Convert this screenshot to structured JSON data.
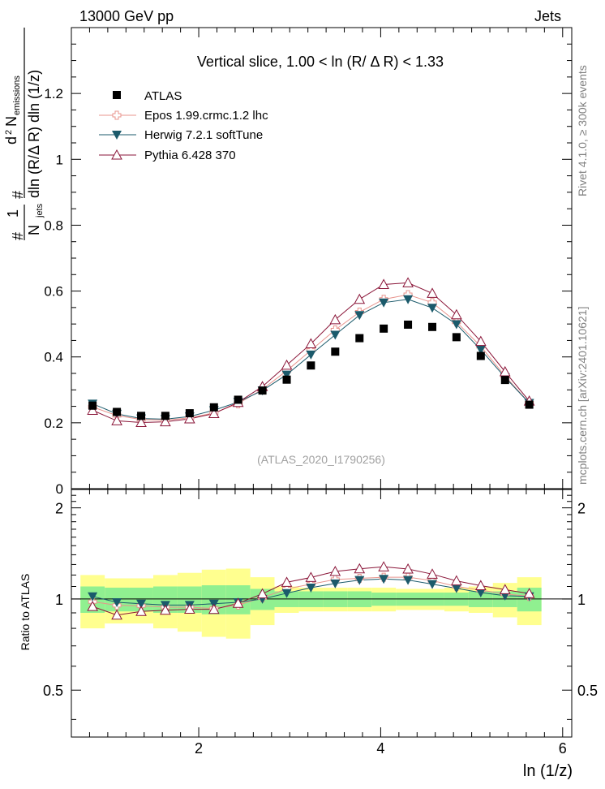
{
  "header": {
    "left_label": "13000 GeV pp",
    "right_label": "Jets"
  },
  "side_labels": {
    "rivet": "Rivet 4.1.0, ≥ 300k events",
    "mcplots": "mcplots.cern.ch [arXiv:2401.10621]"
  },
  "chart_data": [
    {
      "type": "line",
      "title": "Vertical slice, 1.00 < ln (R/  Δ R) < 1.33",
      "watermark": "(ATLAS_2020_I1790256)",
      "xlabel": "ln (1/z)",
      "ylabel_parts": {
        "hash1": "#",
        "one": "1",
        "n": "N",
        "jets": "jets",
        "hash2": "#",
        "d2": "d",
        "d2_sup": "2",
        "n_em": "N",
        "emissions": "emissions",
        "denominator": "dln (R/Δ R) dln (1/z)"
      },
      "xlim": [
        0.6,
        6.1
      ],
      "ylim": [
        0,
        1.4
      ],
      "y_ticks": [
        "0",
        "0.2",
        "0.4",
        "0.6",
        "0.8",
        "1",
        "1.2"
      ],
      "x": [
        0.833,
        1.1,
        1.367,
        1.633,
        1.9,
        2.167,
        2.433,
        2.7,
        2.967,
        3.233,
        3.5,
        3.767,
        4.033,
        4.3,
        4.567,
        4.833,
        5.1,
        5.367,
        5.633
      ],
      "series": [
        {
          "name": "ATLAS",
          "values": [
            0.252,
            0.233,
            0.221,
            0.221,
            0.229,
            0.247,
            0.27,
            0.298,
            0.331,
            0.374,
            0.416,
            0.457,
            0.486,
            0.498,
            0.491,
            0.46,
            0.403,
            0.33,
            0.255
          ]
        },
        {
          "name": "Epos 1.99.crmc.1.2 lhc",
          "values": [
            0.248,
            0.222,
            0.21,
            0.208,
            0.215,
            0.23,
            0.258,
            0.302,
            0.358,
            0.42,
            0.482,
            0.536,
            0.575,
            0.589,
            0.565,
            0.506,
            0.432,
            0.342,
            0.26
          ]
        },
        {
          "name": "Herwig 7.2.1 softTune",
          "values": [
            0.258,
            0.227,
            0.213,
            0.211,
            0.219,
            0.238,
            0.263,
            0.298,
            0.346,
            0.407,
            0.467,
            0.527,
            0.565,
            0.575,
            0.549,
            0.499,
            0.422,
            0.338,
            0.26
          ]
        },
        {
          "name": "Pythia 6.428 370",
          "values": [
            0.238,
            0.206,
            0.201,
            0.203,
            0.212,
            0.228,
            0.262,
            0.31,
            0.375,
            0.44,
            0.513,
            0.575,
            0.62,
            0.625,
            0.593,
            0.528,
            0.447,
            0.355,
            0.266
          ]
        }
      ],
      "legend": [
        "ATLAS",
        "Epos 1.99.crmc.1.2 lhc",
        "Herwig 7.2.1 softTune",
        "Pythia 6.428 370"
      ],
      "legend_position": "top-left",
      "colors": {
        "ATLAS": "#000000",
        "Epos 1.99.crmc.1.2 lhc": "#e8948d",
        "Herwig 7.2.1 softTune": "#1b5a6b",
        "Pythia 6.428 370": "#8a1538"
      }
    },
    {
      "type": "line",
      "title": "",
      "xlabel": "ln (1/z)",
      "ylabel": "Ratio to ATLAS",
      "xlim": [
        0.6,
        6.1
      ],
      "ylim": [
        0.35,
        2.3
      ],
      "y_ticks": [
        "0.5",
        "1",
        "2"
      ],
      "x_ticks": [
        "2",
        "4",
        "6"
      ],
      "x_edges": [
        0.7,
        0.967,
        1.233,
        1.5,
        1.767,
        2.033,
        2.3,
        2.567,
        2.833,
        3.1,
        3.367,
        3.633,
        3.9,
        4.167,
        4.433,
        4.7,
        4.967,
        5.233,
        5.5,
        5.767
      ],
      "band_stat": [
        0.1,
        0.09,
        0.09,
        0.1,
        0.1,
        0.11,
        0.11,
        0.08,
        0.06,
        0.06,
        0.06,
        0.06,
        0.05,
        0.05,
        0.05,
        0.05,
        0.06,
        0.06,
        0.09
      ],
      "band_total": [
        0.2,
        0.17,
        0.17,
        0.2,
        0.22,
        0.25,
        0.26,
        0.18,
        0.1,
        0.09,
        0.09,
        0.09,
        0.09,
        0.08,
        0.08,
        0.09,
        0.1,
        0.13,
        0.18
      ],
      "series": [
        {
          "name": "Epos 1.99.crmc.1.2 lhc",
          "values": [
            0.98,
            0.953,
            0.95,
            0.94,
            0.94,
            0.93,
            0.955,
            1.01,
            1.08,
            1.12,
            1.16,
            1.17,
            1.18,
            1.18,
            1.15,
            1.1,
            1.07,
            1.04,
            1.02
          ]
        },
        {
          "name": "Herwig 7.2.1 softTune",
          "values": [
            1.02,
            0.975,
            0.965,
            0.955,
            0.955,
            0.965,
            0.975,
            1.0,
            1.045,
            1.09,
            1.125,
            1.155,
            1.165,
            1.155,
            1.12,
            1.085,
            1.05,
            1.025,
            1.02
          ]
        },
        {
          "name": "Pythia 6.428 370",
          "values": [
            0.945,
            0.885,
            0.91,
            0.918,
            0.925,
            0.924,
            0.968,
            1.04,
            1.135,
            1.178,
            1.233,
            1.258,
            1.277,
            1.256,
            1.208,
            1.148,
            1.107,
            1.074,
            1.042
          ]
        }
      ]
    }
  ]
}
